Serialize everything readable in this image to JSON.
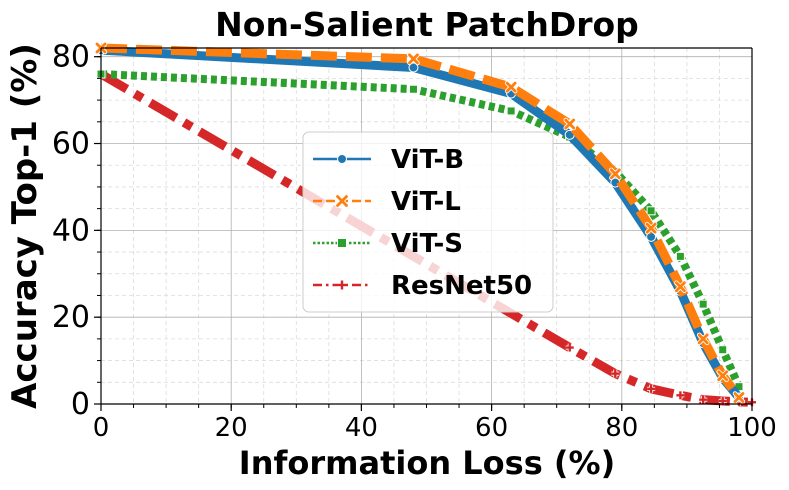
{
  "chart_data": {
    "type": "line",
    "title": "Non-Salient PatchDrop",
    "xlabel": "Information Loss (%)",
    "ylabel": "Accuracy Top-1 (%)",
    "xlim": [
      0,
      100
    ],
    "ylim": [
      0,
      82
    ],
    "xticks": [
      "0",
      "20",
      "40",
      "60",
      "80",
      "100"
    ],
    "yticks": [
      "0",
      "20",
      "40",
      "60",
      "80"
    ],
    "grid": true,
    "legend_position": "center",
    "series": [
      {
        "name": "ViT-B",
        "color": "#1f77b4",
        "marker": "circle",
        "line_style": "solid",
        "x": [
          0,
          48,
          63,
          72,
          79,
          84.5,
          89,
          92.5,
          95.5,
          98
        ],
        "y": [
          81.5,
          77.5,
          71.5,
          62,
          51,
          38.5,
          26,
          14,
          6,
          1.5
        ]
      },
      {
        "name": "ViT-L",
        "color": "#ff7f0e",
        "marker": "x",
        "line_style": "dashed",
        "x": [
          0,
          48,
          63,
          72,
          79,
          84.5,
          89,
          92.5,
          95.5,
          98
        ],
        "y": [
          82,
          79.5,
          73,
          64.5,
          53,
          40.5,
          27,
          15,
          6.5,
          1.5
        ]
      },
      {
        "name": "ViT-S",
        "color": "#2ca02c",
        "marker": "square",
        "line_style": "dotted",
        "x": [
          0,
          48,
          63,
          72,
          79,
          84.5,
          89,
          92.5,
          95.5,
          98
        ],
        "y": [
          76,
          72.5,
          67.5,
          61.5,
          53.5,
          44.5,
          34,
          23,
          12.5,
          4
        ]
      },
      {
        "name": "ResNet50",
        "color": "#d62728",
        "marker": "plus",
        "line_style": "dashdot",
        "x": [
          0,
          72,
          79,
          84.5,
          89,
          92.5,
          95.5,
          98,
          100
        ],
        "y": [
          76,
          13,
          7,
          3.5,
          2,
          1,
          0.7,
          0.5,
          0.4
        ]
      }
    ]
  }
}
